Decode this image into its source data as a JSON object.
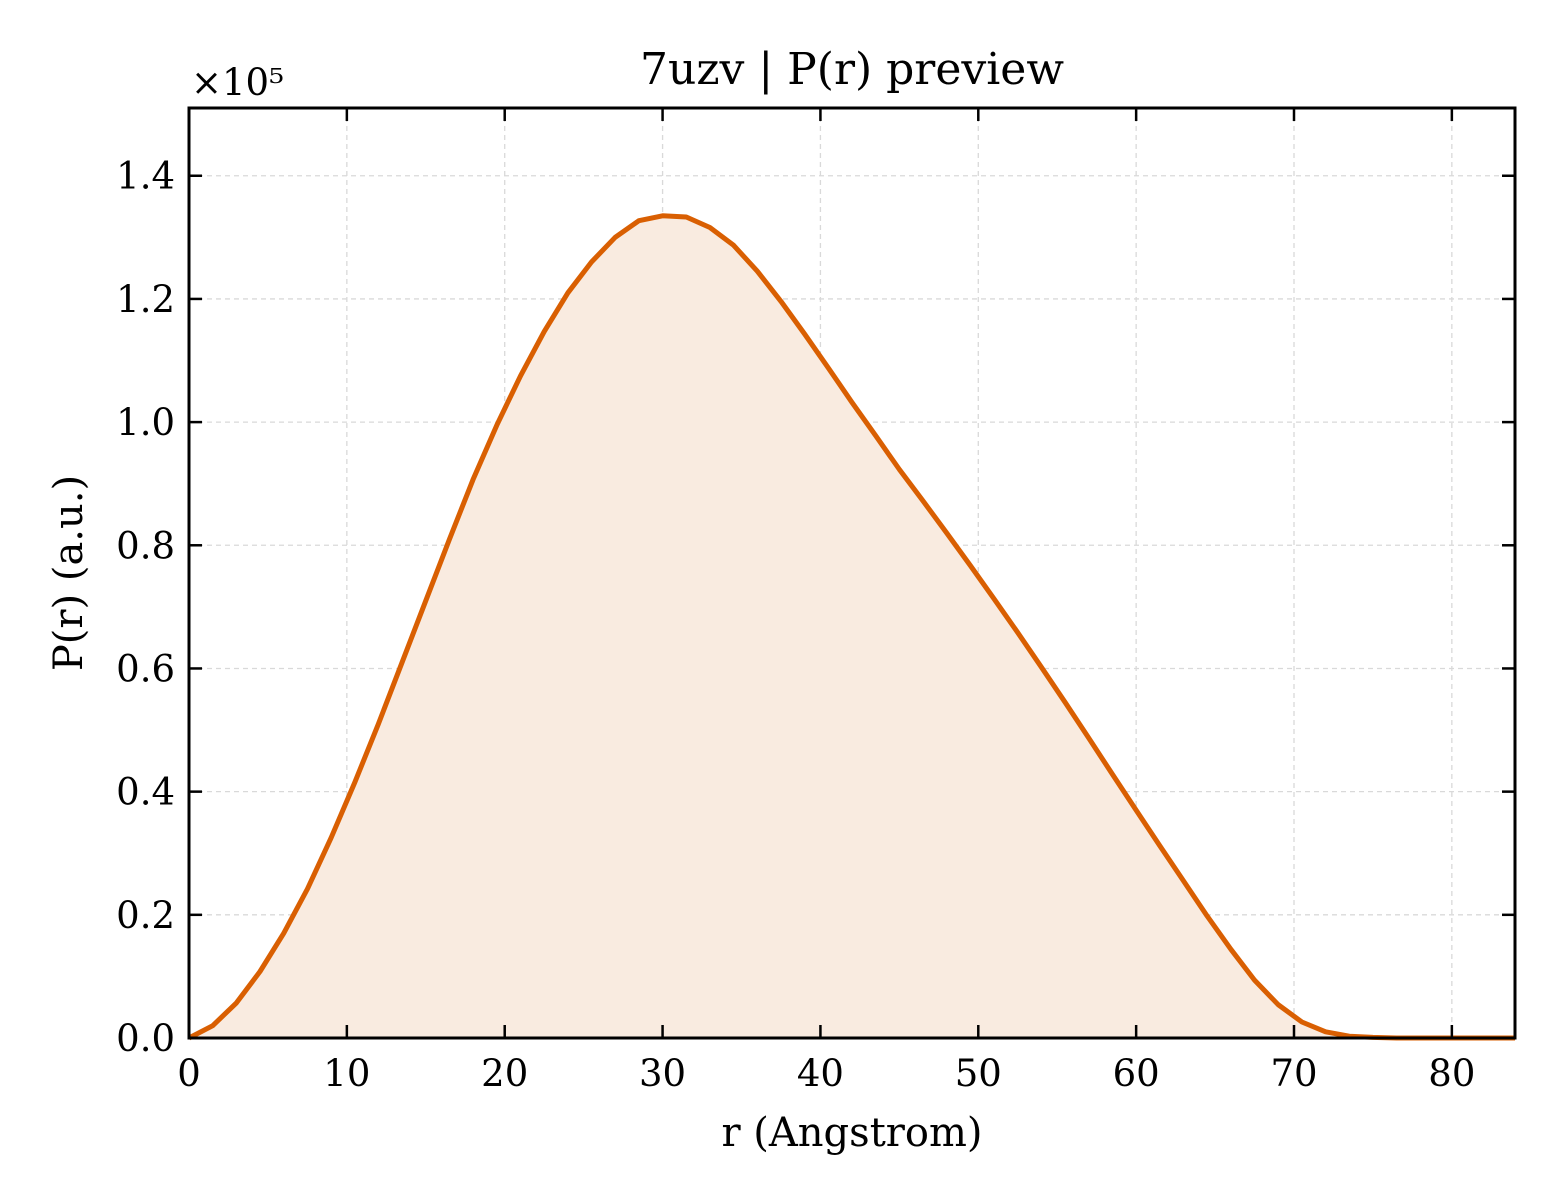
{
  "chart_data": {
    "type": "area",
    "title": "7uzv | P(r) preview",
    "xlabel": "r (Angstrom)",
    "ylabel": "P(r) (a.u.)",
    "y_offset_label": "×10⁵",
    "y_scale_factor": 100000,
    "xlim": [
      0,
      84
    ],
    "ylim": [
      0,
      151000
    ],
    "xticks": [
      0,
      10,
      20,
      30,
      40,
      50,
      60,
      70,
      80
    ],
    "xtick_labels": [
      "0",
      "10",
      "20",
      "30",
      "40",
      "50",
      "60",
      "70",
      "80"
    ],
    "yticks": [
      0,
      20000,
      40000,
      60000,
      80000,
      100000,
      120000,
      140000
    ],
    "ytick_labels": [
      "0.0",
      "0.2",
      "0.4",
      "0.6",
      "0.8",
      "1.0",
      "1.2",
      "1.4"
    ],
    "grid": true,
    "colors": {
      "line": "#d95f02",
      "fill": "#f9ebe0"
    },
    "series": [
      {
        "x": [
          0,
          1.5,
          3,
          4.5,
          6,
          7.5,
          9,
          10.5,
          12,
          13.5,
          15,
          16.5,
          18,
          19.5,
          21,
          22.5,
          24,
          25.5,
          27,
          28.5,
          30,
          31.5,
          33,
          34.5,
          36,
          37.5,
          39,
          40.5,
          42,
          43.5,
          45,
          46.5,
          48,
          49.5,
          51,
          52.5,
          54,
          55.5,
          57,
          58.5,
          60,
          61.5,
          63,
          64.5,
          66,
          67.5,
          69,
          70.5,
          72,
          73.5,
          75,
          76.5,
          78,
          79.5,
          81,
          82.5,
          84
        ],
        "y": [
          0,
          2000,
          5700,
          10800,
          17000,
          24200,
          32500,
          41500,
          51000,
          61000,
          71000,
          81000,
          90700,
          99500,
          107500,
          114700,
          121000,
          126000,
          130000,
          132700,
          133500,
          133300,
          131600,
          128700,
          124500,
          119600,
          114300,
          108800,
          103200,
          97800,
          92300,
          87200,
          82000,
          76700,
          71300,
          65800,
          60200,
          54500,
          48700,
          42800,
          37000,
          31200,
          25500,
          19800,
          14400,
          9400,
          5400,
          2600,
          1000,
          300,
          100,
          0,
          0,
          0,
          0,
          0,
          0
        ]
      }
    ]
  }
}
